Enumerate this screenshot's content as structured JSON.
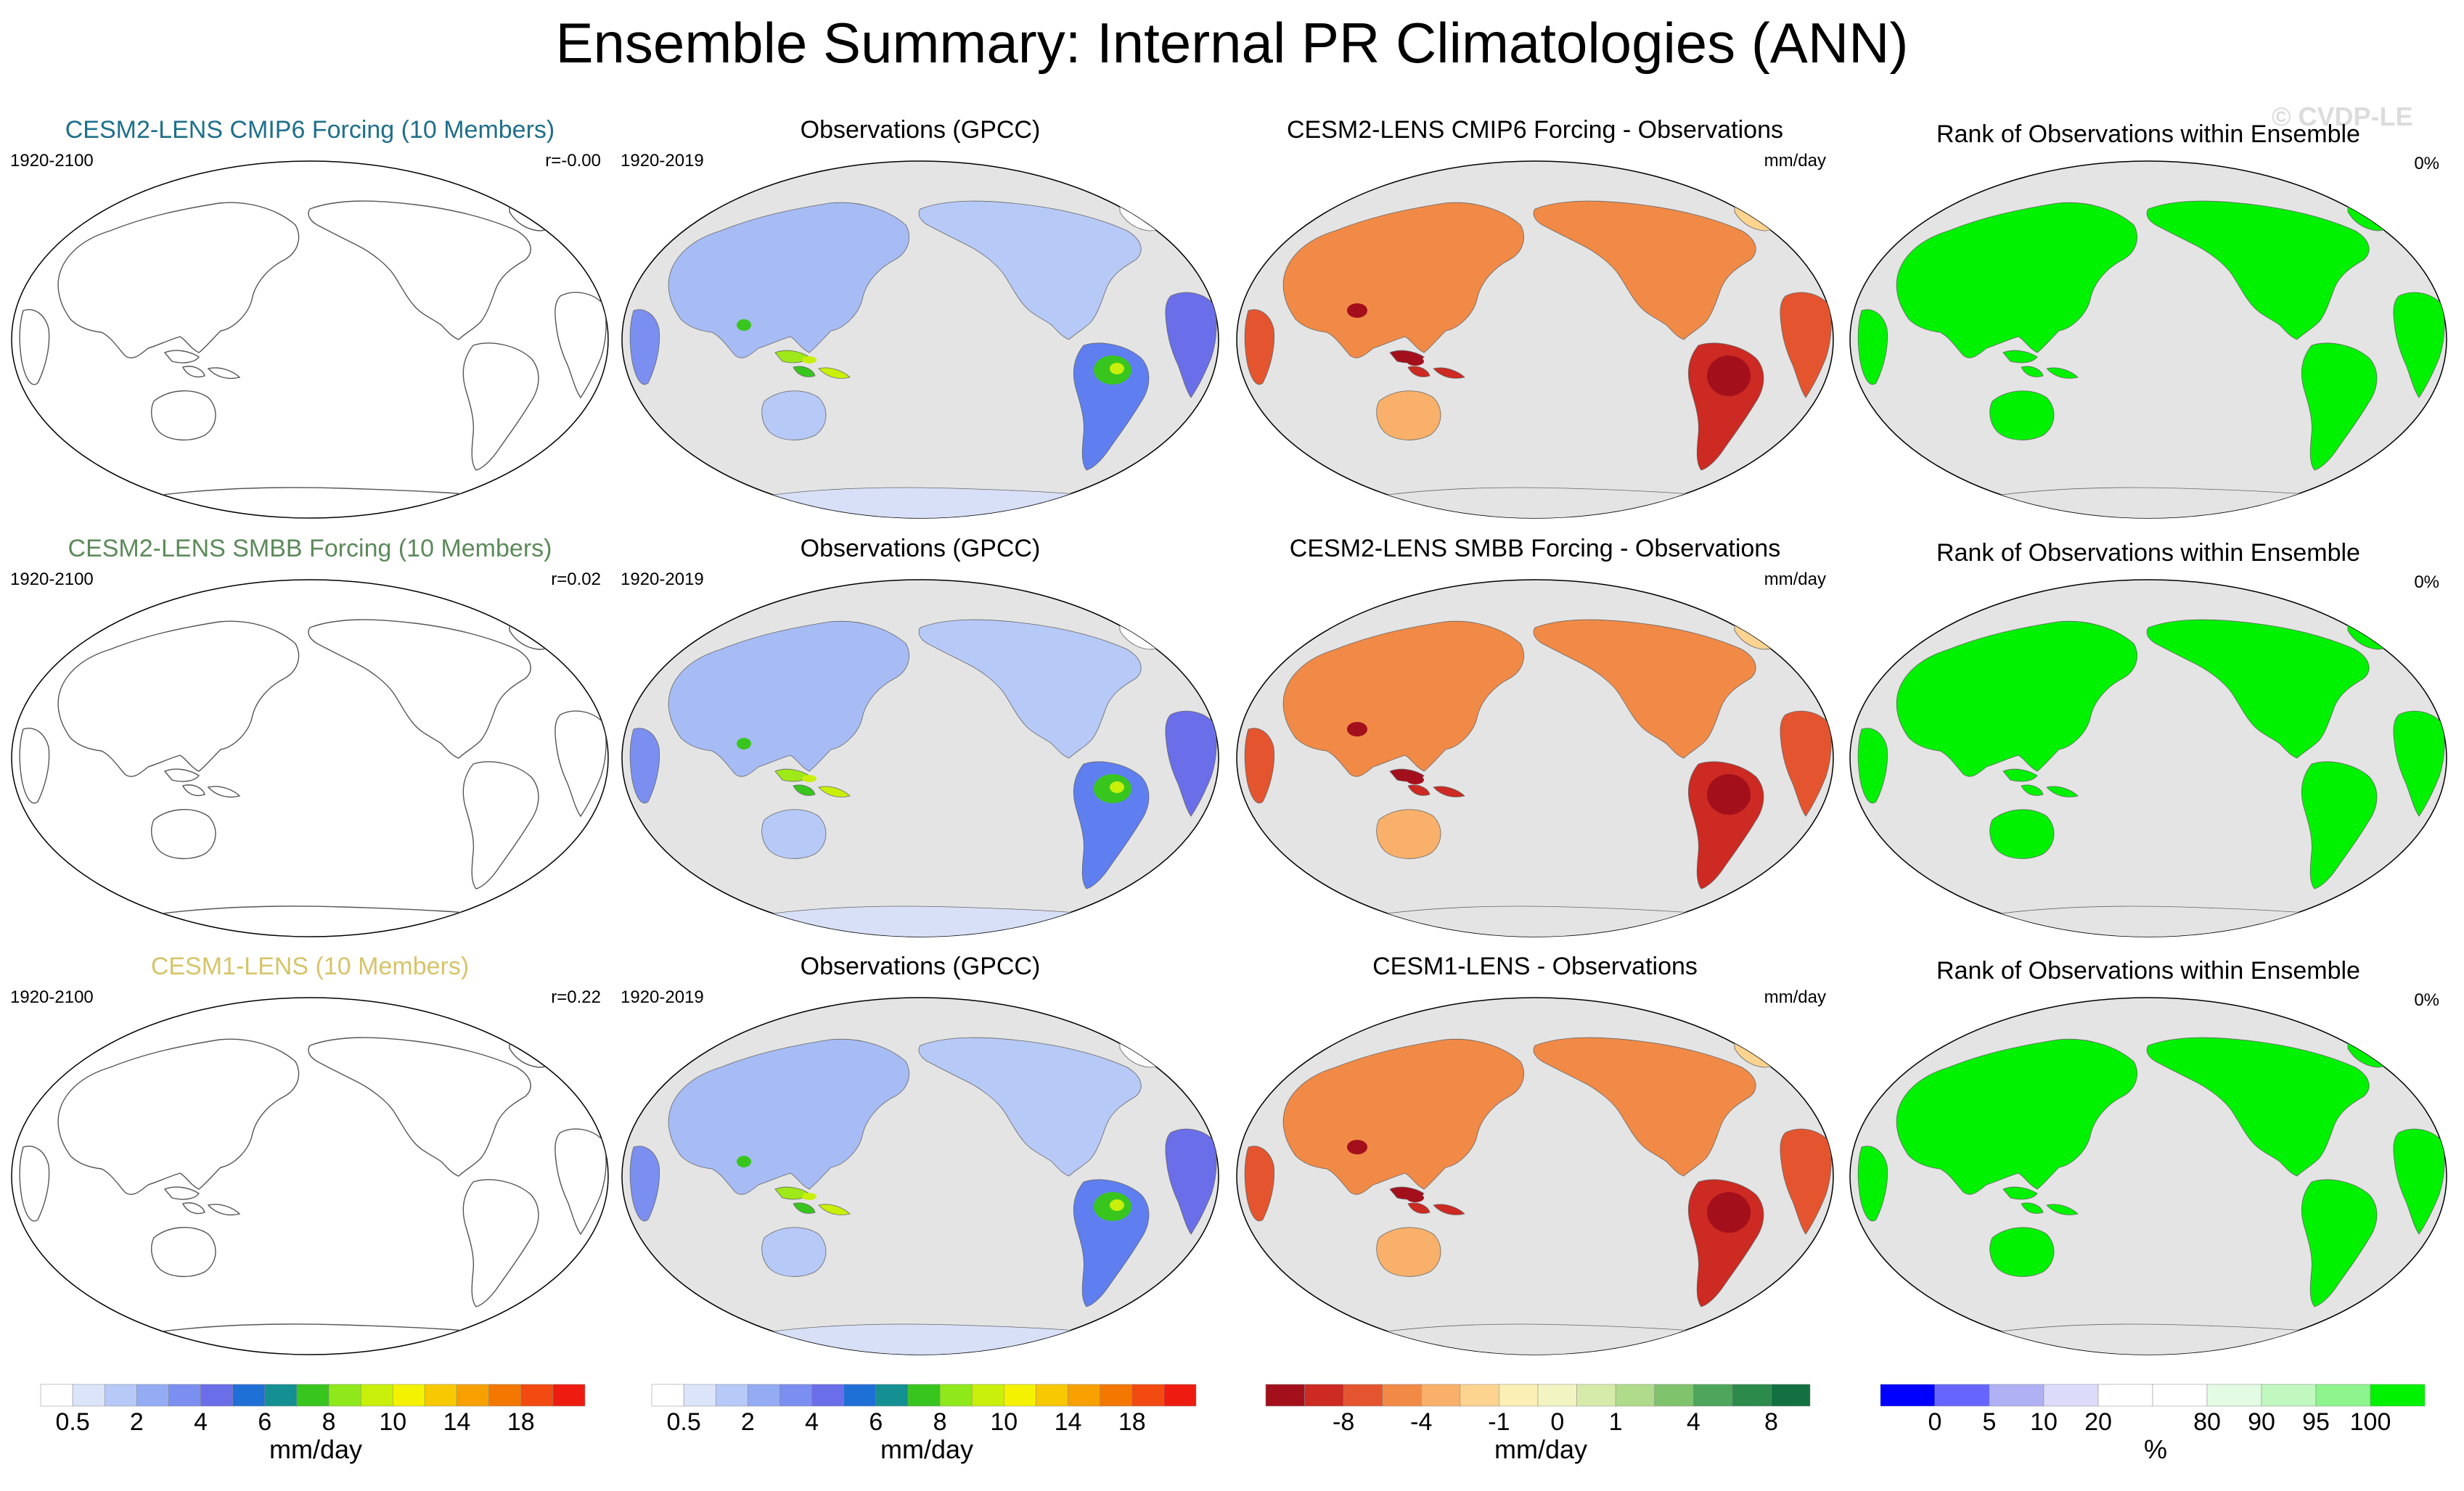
{
  "title": "Ensemble Summary: Internal PR Climatologies (ANN)",
  "watermark": "© CVDP-LE",
  "rows": [
    {
      "ensemble": {
        "title": "CESM2-LENS CMIP6 Forcing (10 Members)",
        "title_color": "#1f6f8b",
        "period": "1920-2100",
        "corr": "r=-0.00"
      },
      "obs": {
        "title": "Observations (GPCC)",
        "period": "1920-2019"
      },
      "diff": {
        "title": "CESM2-LENS CMIP6 Forcing - Observations",
        "units": "mm/day"
      },
      "rank": {
        "title": "Rank of Observations within Ensemble",
        "pct": "0%"
      }
    },
    {
      "ensemble": {
        "title": "CESM2-LENS SMBB Forcing (10 Members)",
        "title_color": "#5c8a5a",
        "period": "1920-2100",
        "corr": "r=0.02"
      },
      "obs": {
        "title": "Observations (GPCC)",
        "period": "1920-2019"
      },
      "diff": {
        "title": "CESM2-LENS SMBB Forcing - Observations",
        "units": "mm/day"
      },
      "rank": {
        "title": "Rank of Observations within Ensemble",
        "pct": "0%"
      }
    },
    {
      "ensemble": {
        "title": "CESM1-LENS (10 Members)",
        "title_color": "#d6c46a",
        "period": "1920-2100",
        "corr": "r=0.22"
      },
      "obs": {
        "title": "Observations (GPCC)",
        "period": "1920-2019"
      },
      "diff": {
        "title": "CESM1-LENS - Observations",
        "units": "mm/day"
      },
      "rank": {
        "title": "Rank of Observations within Ensemble",
        "pct": "0%"
      }
    }
  ],
  "colorbars": [
    {
      "unit": "mm/day",
      "colors": [
        "#ffffff",
        "#dce4fa",
        "#b7c9f7",
        "#94acf4",
        "#7b8ff0",
        "#6a6ee8",
        "#1e6fd6",
        "#148f92",
        "#38c61e",
        "#8fe81a",
        "#c8f00a",
        "#f4f200",
        "#f8c800",
        "#f7a000",
        "#f47800",
        "#f24a10",
        "#ee1c10"
      ],
      "ticks": [
        "0.5",
        "2",
        "4",
        "6",
        "8",
        "10",
        "14",
        "18"
      ]
    },
    {
      "unit": "mm/day",
      "colors": [
        "#ffffff",
        "#dce4fa",
        "#b7c9f7",
        "#94acf4",
        "#7b8ff0",
        "#6a6ee8",
        "#1e6fd6",
        "#148f92",
        "#38c61e",
        "#8fe81a",
        "#c8f00a",
        "#f4f200",
        "#f8c800",
        "#f7a000",
        "#f47800",
        "#f24a10",
        "#ee1c10"
      ],
      "ticks": [
        "0.5",
        "2",
        "4",
        "6",
        "8",
        "10",
        "14",
        "18"
      ]
    },
    {
      "unit": "mm/day",
      "colors": [
        "#a3101c",
        "#cc2a22",
        "#e4552f",
        "#f18a47",
        "#f9b06a",
        "#fcd38f",
        "#fbefb5",
        "#f2f5c2",
        "#d6ebaa",
        "#b0db8a",
        "#7fc36d",
        "#4ea65c",
        "#2c8a4a",
        "#137040"
      ],
      "ticks": [
        "-8",
        "-4",
        "-1",
        "0",
        "1",
        "4",
        "8"
      ]
    },
    {
      "unit": "%",
      "colors": [
        "#0000ff",
        "#6666ff",
        "#b0b0f5",
        "#dcdcfa",
        "#ffffff",
        "#ffffff",
        "#e3fbe3",
        "#c0f8c0",
        "#8ef48e",
        "#00f200"
      ],
      "ticks": [
        "0",
        "5",
        "10",
        "20",
        "80",
        "90",
        "95",
        "100"
      ]
    }
  ]
}
